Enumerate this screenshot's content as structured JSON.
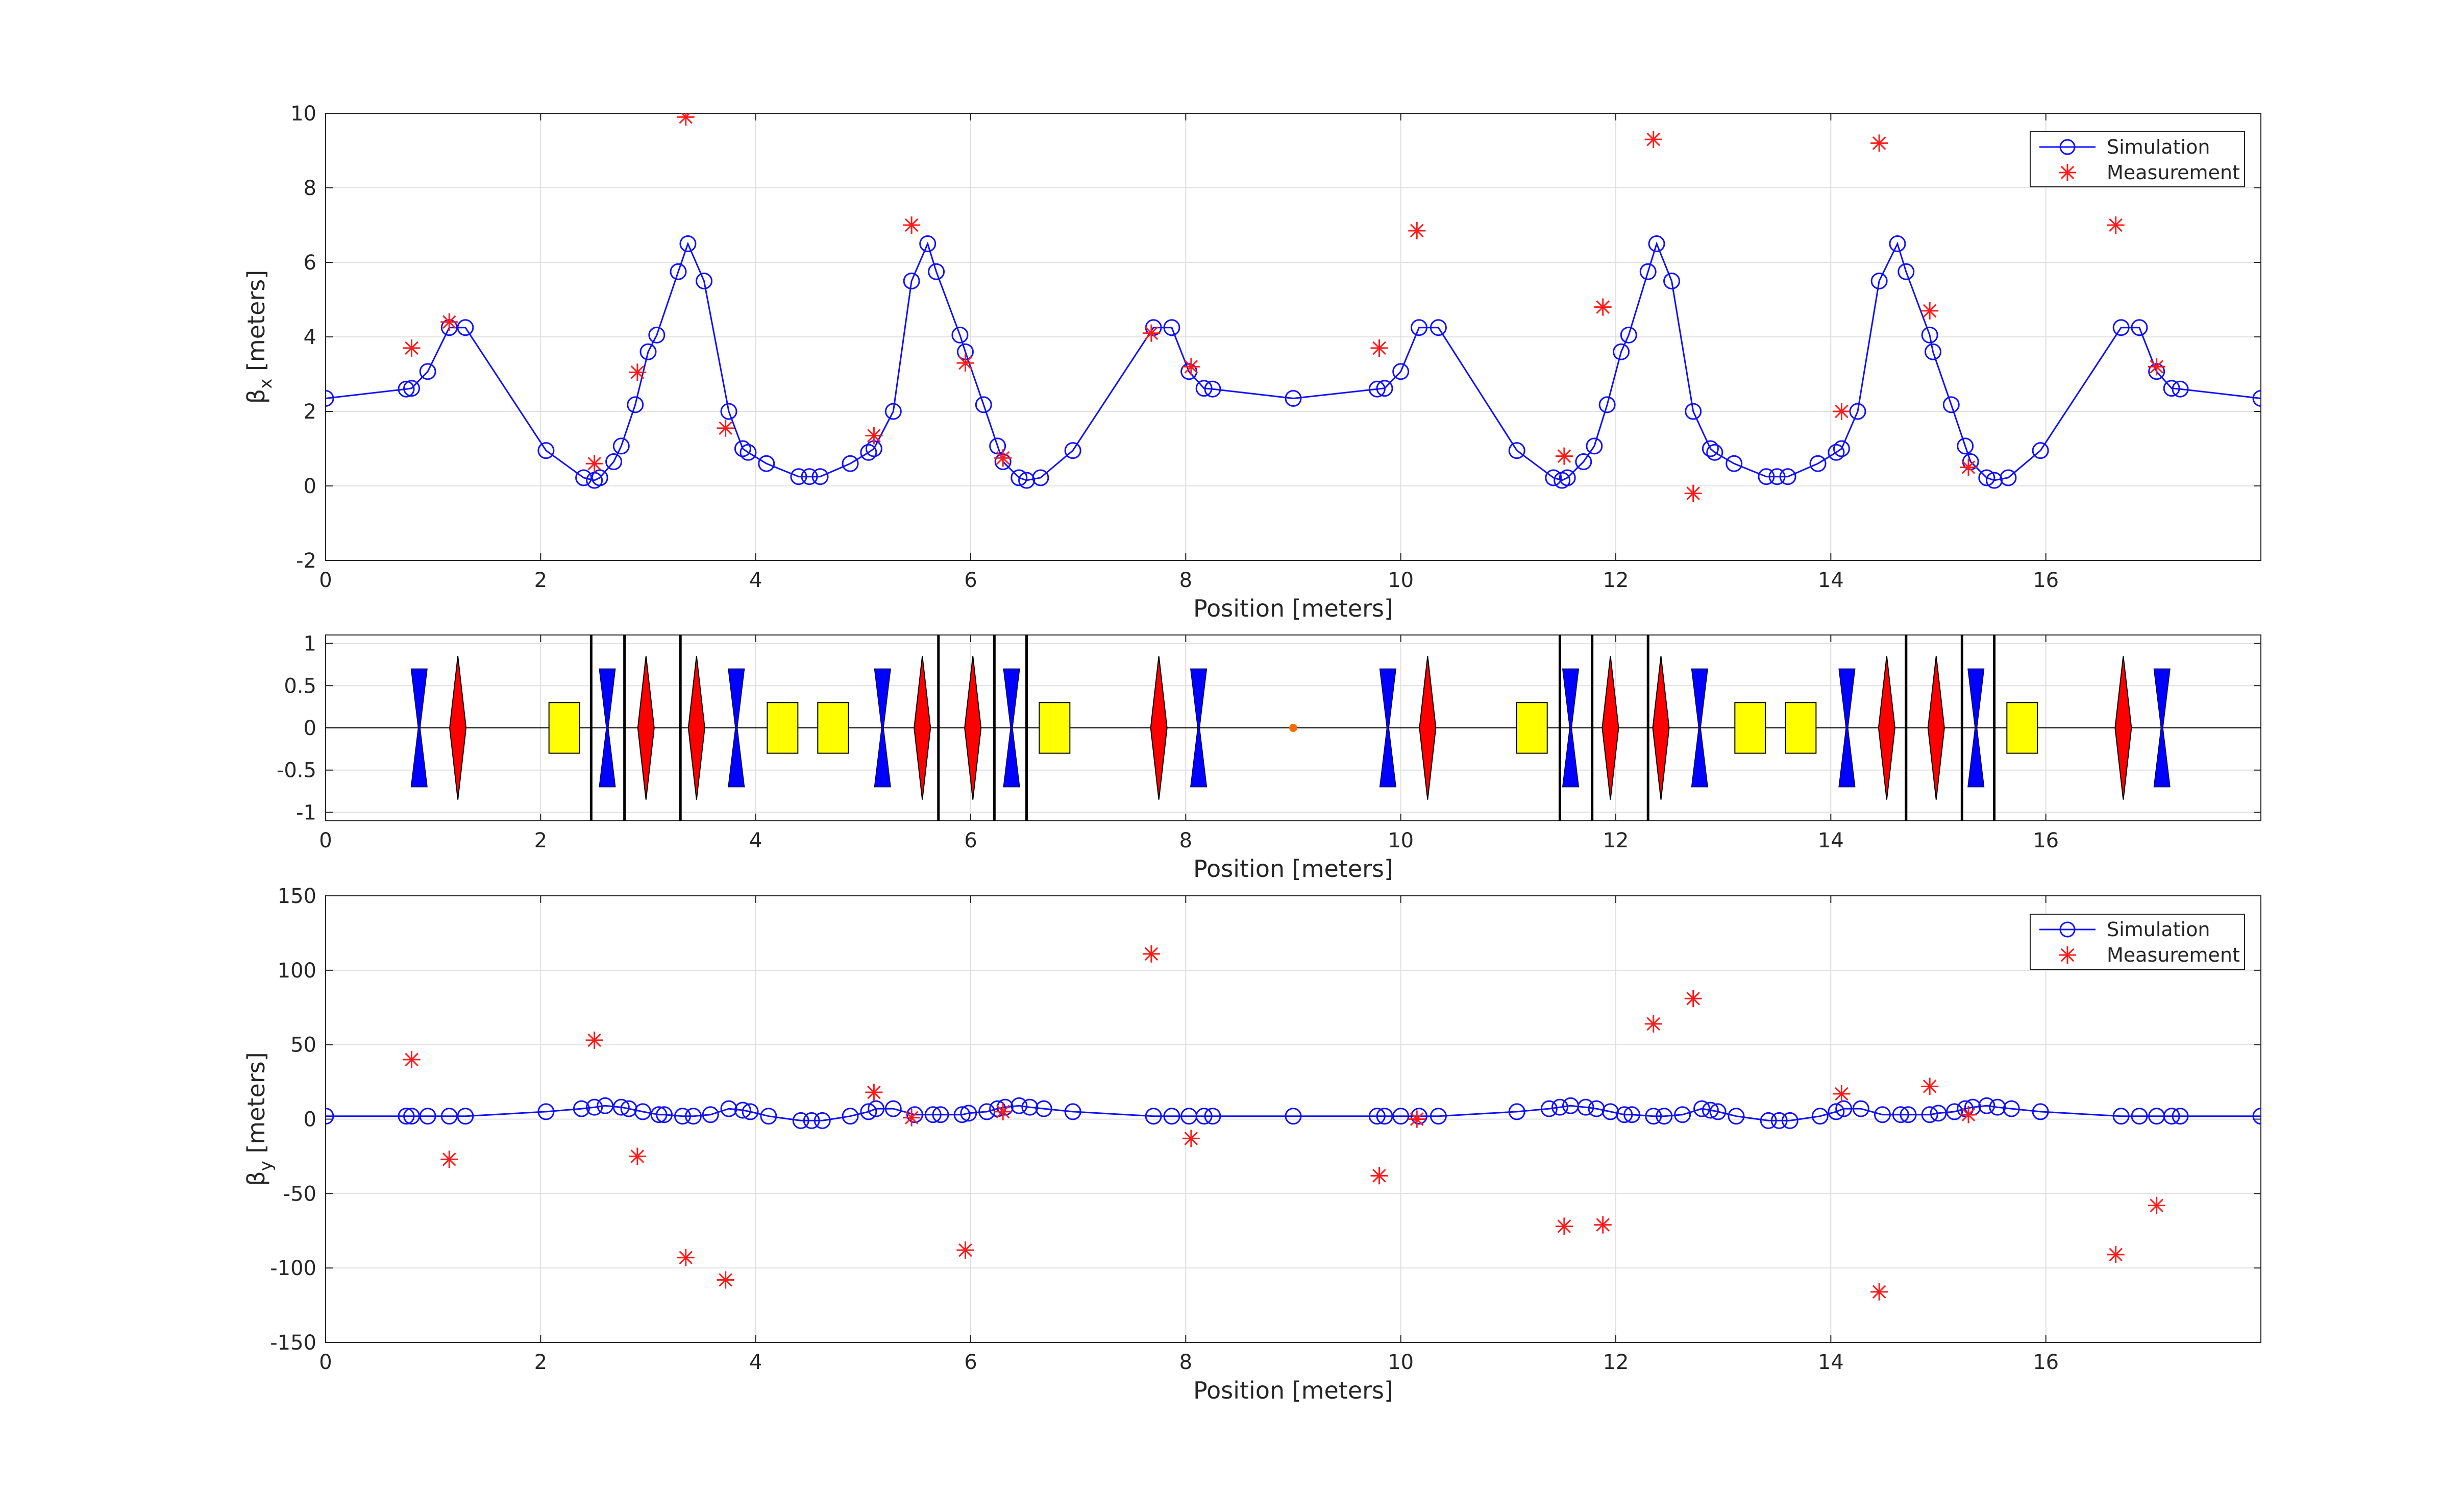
{
  "chart_data": [
    {
      "type": "line",
      "panel": "beta_x",
      "ylabel": "β",
      "ylabel_sub": "x",
      "ylabel_unit": " [meters]",
      "xlabel": "Position [meters]",
      "xlim": [
        0,
        18
      ],
      "ylim": [
        -2,
        10
      ],
      "xticks": [
        "0",
        "2",
        "4",
        "6",
        "8",
        "10",
        "12",
        "14",
        "16"
      ],
      "yticks": [
        "-2",
        "0",
        "2",
        "4",
        "6",
        "8",
        "10"
      ],
      "grid": true,
      "legend": "top-right",
      "series": [
        {
          "name": "Simulation",
          "style": "line-circle",
          "color": "#1010ff",
          "x": [
            0,
            0.75,
            0.8,
            0.95,
            1.15,
            1.3,
            2.05,
            2.4,
            2.5,
            2.55,
            2.68,
            2.75,
            2.88,
            3.0,
            3.08,
            3.28,
            3.37,
            3.52,
            3.75,
            3.88,
            3.93,
            4.1,
            4.4,
            4.5,
            4.6,
            4.88,
            5.05,
            5.1,
            5.28,
            5.45,
            5.6,
            5.68,
            5.9,
            5.95,
            6.12,
            6.25,
            6.3,
            6.45,
            6.52,
            6.65,
            6.95,
            7.7,
            7.87,
            8.03,
            8.17,
            8.25,
            9.0,
            9.78,
            9.85,
            10.0,
            10.17,
            10.35,
            11.08,
            11.42,
            11.5,
            11.55,
            11.7,
            11.8,
            11.92,
            12.05,
            12.12,
            12.3,
            12.38,
            12.52,
            12.72,
            12.88,
            12.92,
            13.1,
            13.4,
            13.5,
            13.6,
            13.88,
            14.05,
            14.1,
            14.25,
            14.45,
            14.62,
            14.7,
            14.92,
            14.95,
            15.12,
            15.25,
            15.3,
            15.45,
            15.52,
            15.65,
            15.95,
            16.7,
            16.87,
            17.03,
            17.17,
            17.25,
            18.0
          ],
          "y": [
            2.35,
            2.6,
            2.62,
            3.07,
            4.25,
            4.25,
            0.95,
            0.22,
            0.15,
            0.22,
            0.65,
            1.07,
            2.18,
            3.6,
            4.05,
            5.75,
            6.5,
            5.5,
            2.0,
            1.0,
            0.9,
            0.6,
            0.25,
            0.25,
            0.25,
            0.6,
            0.9,
            1.0,
            2.0,
            5.5,
            6.5,
            5.75,
            4.05,
            3.6,
            2.18,
            1.07,
            0.65,
            0.22,
            0.15,
            0.22,
            0.95,
            4.25,
            4.25,
            3.07,
            2.62,
            2.6,
            2.35,
            2.6,
            2.62,
            3.07,
            4.25,
            4.25,
            0.95,
            0.22,
            0.15,
            0.22,
            0.65,
            1.07,
            2.18,
            3.6,
            4.05,
            5.75,
            6.5,
            5.5,
            2.0,
            1.0,
            0.9,
            0.6,
            0.25,
            0.25,
            0.25,
            0.6,
            0.9,
            1.0,
            2.0,
            5.5,
            6.5,
            5.75,
            4.05,
            3.6,
            2.18,
            1.07,
            0.65,
            0.22,
            0.15,
            0.22,
            0.95,
            4.25,
            4.25,
            3.07,
            2.62,
            2.6,
            2.35
          ]
        },
        {
          "name": "Measurement",
          "style": "asterisk",
          "color": "#ff1a1a",
          "x": [
            0.8,
            1.15,
            2.5,
            2.9,
            3.35,
            3.72,
            5.1,
            5.45,
            5.95,
            6.3,
            7.68,
            8.05,
            9.8,
            10.15,
            11.52,
            11.88,
            12.35,
            12.72,
            14.1,
            14.45,
            14.92,
            15.28,
            16.65,
            17.03
          ],
          "y": [
            3.7,
            4.4,
            0.6,
            3.05,
            9.9,
            1.55,
            1.35,
            7.0,
            3.3,
            0.75,
            4.1,
            3.2,
            3.7,
            6.85,
            0.8,
            4.8,
            9.3,
            -0.2,
            2.0,
            9.2,
            4.7,
            0.5,
            7.0,
            3.2
          ]
        }
      ]
    },
    {
      "type": "diagram",
      "panel": "lattice",
      "xlabel": "Position [meters]",
      "xlim": [
        0,
        18
      ],
      "ylim": [
        -1.1,
        1.1
      ],
      "xticks": [
        "0",
        "2",
        "4",
        "6",
        "8",
        "10",
        "12",
        "14",
        "16"
      ],
      "yticks": [
        "1",
        "0.5",
        "0",
        "-0.5",
        "-1"
      ],
      "ytick_values": [
        1,
        0.5,
        0,
        -0.5,
        -1
      ],
      "grid": true,
      "colors": {
        "focusing": "#ff0000",
        "defocusing": "#0000ff",
        "dipole": "#ffff00",
        "marker": "#ff6a00",
        "divider": "#000000"
      },
      "focusing_quads": [
        1.23,
        2.98,
        3.45,
        5.55,
        6.02,
        7.75,
        10.25,
        11.95,
        12.42,
        14.52,
        14.98,
        16.72
      ],
      "defocusing_quads": [
        0.87,
        2.62,
        3.82,
        5.18,
        6.38,
        8.12,
        9.88,
        11.58,
        12.78,
        14.15,
        15.35,
        17.08
      ],
      "dipoles": [
        2.22,
        4.25,
        4.72,
        6.78,
        11.22,
        13.25,
        13.72,
        15.78
      ],
      "dividers": [
        2.47,
        2.78,
        3.3,
        5.7,
        6.22,
        6.52,
        11.48,
        11.78,
        12.3,
        14.7,
        15.22,
        15.52
      ],
      "marker_positions": [
        9.0
      ]
    },
    {
      "type": "line",
      "panel": "beta_y",
      "ylabel": "β",
      "ylabel_sub": "y",
      "ylabel_unit": " [meters]",
      "xlabel": "Position [meters]",
      "xlim": [
        0,
        18
      ],
      "ylim": [
        -150,
        150
      ],
      "xticks": [
        "0",
        "2",
        "4",
        "6",
        "8",
        "10",
        "12",
        "14",
        "16"
      ],
      "yticks": [
        "-150",
        "-100",
        "-50",
        "0",
        "50",
        "100",
        "150"
      ],
      "grid": true,
      "legend": "top-right",
      "series": [
        {
          "name": "Simulation",
          "style": "line-circle",
          "color": "#1010ff",
          "x": [
            0,
            0.75,
            0.8,
            0.95,
            1.15,
            1.3,
            2.05,
            2.38,
            2.5,
            2.6,
            2.75,
            2.82,
            2.95,
            3.1,
            3.15,
            3.32,
            3.42,
            3.58,
            3.75,
            3.88,
            3.95,
            4.12,
            4.42,
            4.52,
            4.62,
            4.88,
            5.05,
            5.12,
            5.28,
            5.48,
            5.65,
            5.72,
            5.92,
            5.98,
            6.15,
            6.25,
            6.32,
            6.45,
            6.55,
            6.68,
            6.95,
            7.7,
            7.87,
            8.03,
            8.17,
            8.25,
            9.0,
            9.78,
            9.85,
            10.0,
            10.17,
            10.35,
            11.08,
            11.38,
            11.48,
            11.58,
            11.72,
            11.82,
            11.95,
            12.08,
            12.15,
            12.35,
            12.45,
            12.62,
            12.8,
            12.88,
            12.95,
            13.12,
            13.42,
            13.52,
            13.62,
            13.9,
            14.05,
            14.12,
            14.28,
            14.48,
            14.65,
            14.72,
            14.92,
            15.0,
            15.15,
            15.25,
            15.32,
            15.45,
            15.55,
            15.68,
            15.95,
            16.7,
            16.87,
            17.03,
            17.17,
            17.25,
            18.0
          ],
          "y": [
            2,
            2,
            2,
            2,
            2,
            2,
            5,
            7,
            8,
            9,
            8,
            7,
            5,
            3,
            3,
            2,
            2,
            3,
            7,
            6,
            5,
            2,
            -1,
            -1,
            -1,
            2,
            5,
            7,
            7,
            3,
            3,
            3,
            3,
            4,
            5,
            7,
            8,
            9,
            8,
            7,
            5,
            2,
            2,
            2,
            2,
            2,
            2,
            2,
            2,
            2,
            2,
            2,
            5,
            7,
            8,
            9,
            8,
            7,
            5,
            3,
            3,
            2,
            2,
            3,
            7,
            6,
            5,
            2,
            -1,
            -1,
            -1,
            2,
            5,
            7,
            7,
            3,
            3,
            3,
            3,
            4,
            5,
            7,
            8,
            9,
            8,
            7,
            5,
            2,
            2,
            2,
            2,
            2,
            2
          ]
        },
        {
          "name": "Measurement",
          "style": "asterisk",
          "color": "#ff1a1a",
          "x": [
            0.8,
            1.15,
            2.5,
            2.9,
            3.35,
            3.72,
            5.1,
            5.45,
            5.95,
            6.3,
            7.68,
            8.05,
            9.8,
            10.15,
            11.52,
            11.88,
            12.35,
            12.72,
            14.1,
            14.45,
            14.92,
            15.28,
            16.65,
            17.03
          ],
          "y": [
            40,
            -27,
            53,
            -25,
            -93,
            -108,
            18,
            1,
            -88,
            5,
            111,
            -13,
            -38,
            0,
            -72,
            -71,
            64,
            81,
            17,
            -116,
            22,
            3,
            -91,
            -58
          ]
        }
      ]
    }
  ]
}
